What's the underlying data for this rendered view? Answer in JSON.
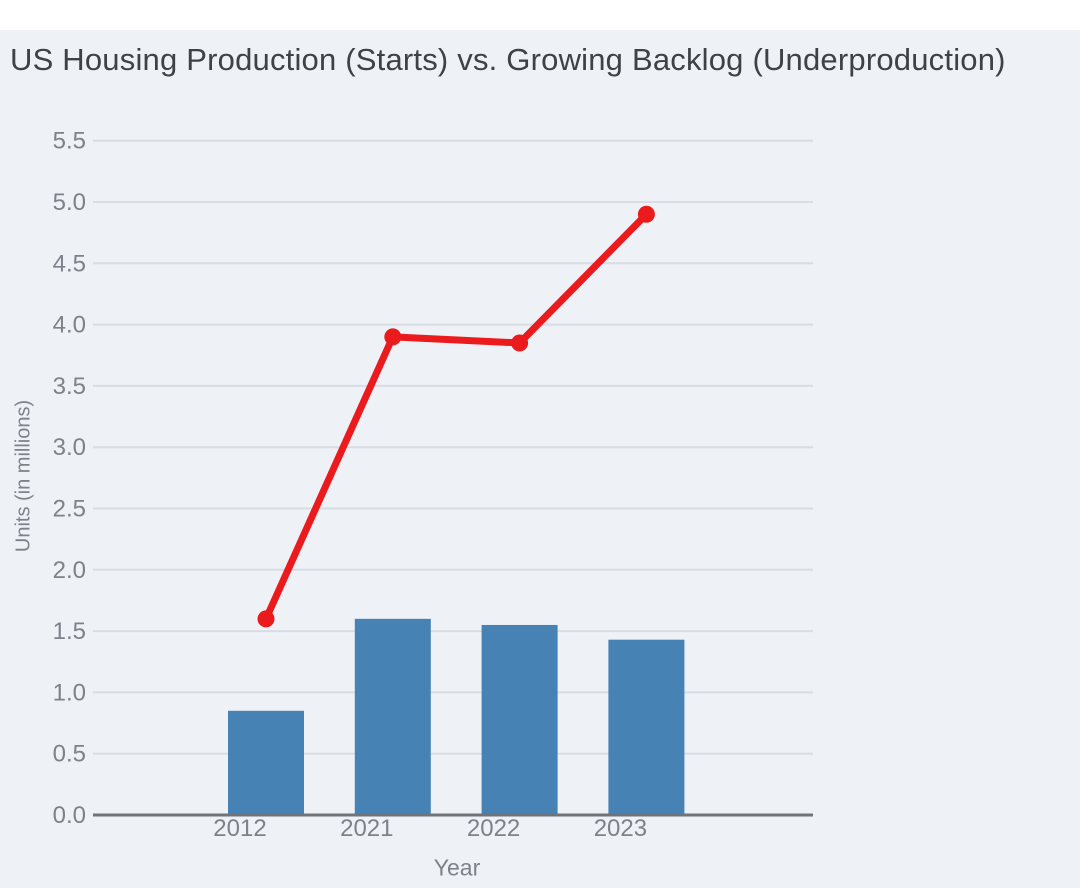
{
  "chart_data": {
    "type": "bar",
    "title": "US Housing Production (Starts) vs. Growing Backlog (Underproduction)",
    "xlabel": "Year",
    "ylabel": "Units (in millions)",
    "categories": [
      "2012",
      "2021",
      "2022",
      "2023"
    ],
    "series": [
      {
        "name": "Housing Production (Starts)",
        "type": "bar",
        "color": "#4682b4",
        "values": [
          0.85,
          1.6,
          1.55,
          1.43
        ]
      },
      {
        "name": "Growing Backlog (Underproduction)",
        "type": "line",
        "color": "#ea1a1d",
        "values": [
          1.6,
          3.9,
          3.85,
          4.9
        ]
      }
    ],
    "ylim": [
      0,
      5.5
    ],
    "yticks": [
      "0.0",
      "0.5",
      "1.0",
      "1.5",
      "2.0",
      "2.5",
      "3.0",
      "3.5",
      "4.0",
      "4.5",
      "5.0",
      "5.5"
    ],
    "grid": true,
    "legend_position": "none"
  },
  "colors": {
    "panel_bg": "#eef1f6",
    "bar": "#4682b4",
    "line": "#ea1a1d",
    "grid": "#d8dce3",
    "axis": "#6e747c",
    "tick_text": "#7d828a",
    "title_text": "#3d4247"
  }
}
